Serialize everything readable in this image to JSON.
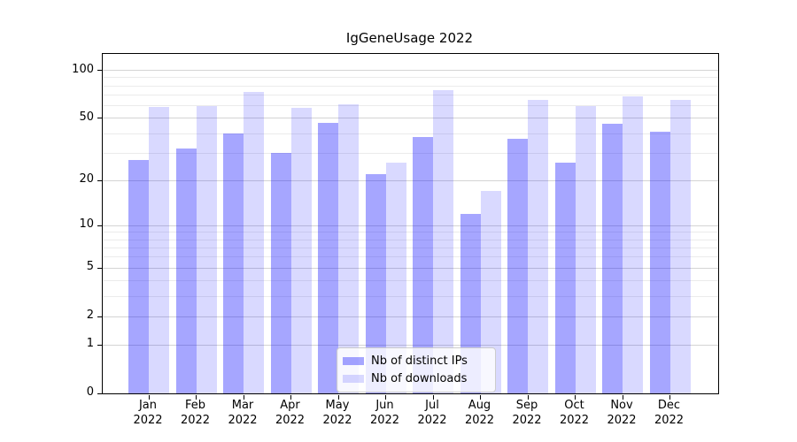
{
  "title": "IgGeneUsage 2022",
  "chart_data": {
    "type": "bar",
    "title": "IgGeneUsage 2022",
    "xlabel": "",
    "ylabel": "",
    "categories": [
      "Jan",
      "Feb",
      "Mar",
      "Apr",
      "May",
      "Jun",
      "Jul",
      "Aug",
      "Sep",
      "Oct",
      "Nov",
      "Dec"
    ],
    "category_year": "2022",
    "series": [
      {
        "name": "Nb of distinct IPs",
        "color": "#0000ff",
        "alpha": 0.35,
        "values": [
          27,
          32,
          40,
          30,
          47,
          22,
          38,
          12,
          37,
          26,
          46,
          41
        ]
      },
      {
        "name": "Nb of downloads",
        "color": "#0000ff",
        "alpha": 0.15,
        "values": [
          59,
          60,
          73,
          58,
          61,
          26,
          75,
          17,
          65,
          60,
          69,
          65
        ]
      }
    ],
    "y_scale": "log1p",
    "ylim": [
      0,
      127
    ],
    "y_ticks": [
      0,
      1,
      2,
      5,
      10,
      20,
      50,
      100
    ],
    "y_minor_ticks": [
      3,
      4,
      6,
      7,
      8,
      9,
      30,
      40,
      60,
      70,
      80,
      90
    ],
    "grid": "both",
    "legend_position": "lower center"
  },
  "colors": {
    "bar_dark": "#a6a6ff",
    "bar_light": "#d9d9ff",
    "grid_major": "#d4d4d4",
    "grid_minor": "#ebebeb",
    "spine": "#000000",
    "background": "#ffffff"
  }
}
